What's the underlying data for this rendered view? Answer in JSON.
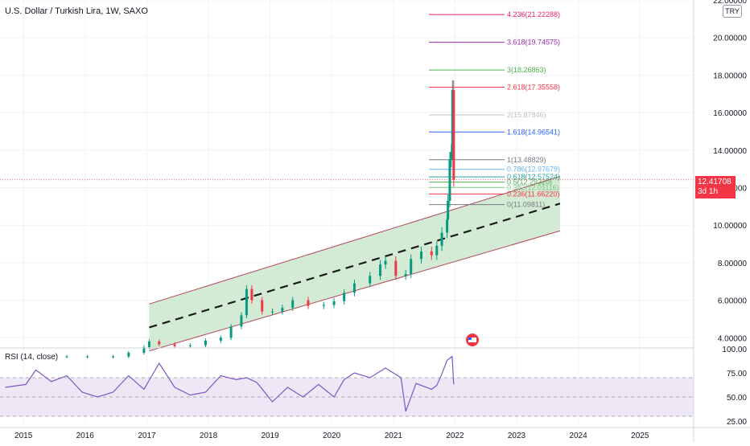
{
  "header": {
    "title": "U.S. Dollar / Turkish Lira, 1W, SAXO",
    "currency_badge": "TRY",
    "last_price": "12.41708",
    "countdown": "3d 1h"
  },
  "rsi_panel": {
    "title": "RSI (14, close)"
  },
  "colors": {
    "candle_up": "#089981",
    "candle_down": "#f23645",
    "channel_fill": "#c8e6c9",
    "channel_border": "#b2475a",
    "midline": "#1a1a1a",
    "rsi_line": "#7e57c2",
    "rsi_band": "#ede7f6"
  },
  "chart_data": [
    {
      "type": "candlestick",
      "series": [
        {
          "name": "",
          "x": [
            "2015-09",
            "2016-01",
            "2016-06",
            "2016-09",
            "2016-12",
            "2017-01",
            "2017-03",
            "2017-06",
            "2017-09",
            "2017-12",
            "2018-03",
            "2018-05",
            "2018-07",
            "2018-08",
            "2018-09",
            "2018-11",
            "2019-01",
            "2019-03",
            "2019-05",
            "2019-08",
            "2019-11",
            "2020-01",
            "2020-03",
            "2020-05",
            "2020-08",
            "2020-10",
            "2020-11",
            "2021-01",
            "2021-03",
            "2021-04",
            "2021-06",
            "2021-08",
            "2021-09",
            "2021-10",
            "2021-11",
            "2021-11-20",
            "2021-12-01",
            "2021-12-10",
            "2021-12-17",
            "2021-12-24"
          ],
          "values": [
            3.0,
            3.0,
            3.0,
            3.2,
            3.5,
            3.8,
            3.65,
            3.55,
            3.6,
            3.85,
            4.0,
            4.6,
            5.2,
            6.6,
            6.0,
            5.4,
            5.4,
            5.6,
            6.0,
            5.7,
            5.75,
            5.95,
            6.4,
            6.9,
            7.3,
            7.9,
            8.1,
            7.3,
            7.4,
            8.2,
            8.6,
            8.4,
            8.9,
            9.6,
            10.3,
            11.3,
            13.5,
            13.9,
            17.2,
            12.42
          ]
        }
      ],
      "ylim": [
        3.5,
        22
      ],
      "y_ticks": [
        "4.00000",
        "6.00000",
        "8.00000",
        "10.00000",
        "12.00000",
        "14.00000",
        "16.00000",
        "18.00000",
        "20.00000",
        "22.00000"
      ],
      "x_ticks": [
        "2015",
        "2016",
        "2017",
        "2018",
        "2019",
        "2020",
        "2021",
        "2022",
        "2023",
        "2024",
        "2025"
      ],
      "channel": {
        "lower_start": [
          "2017-01",
          3.3
        ],
        "lower_end": [
          "2023-09",
          9.7
        ],
        "upper_start": [
          "2017-01",
          5.8
        ],
        "upper_end": [
          "2023-09",
          12.6
        ]
      },
      "fibonacci_levels": [
        {
          "label": "4.236(21.22288)",
          "value": 21.22288,
          "color": "#e91e63"
        },
        {
          "label": "3.618(19.74575)",
          "value": 19.74575,
          "color": "#9c27b0"
        },
        {
          "label": "3(18.26863)",
          "value": 18.26863,
          "color": "#4caf50"
        },
        {
          "label": "2.618(17.35558)",
          "value": 17.35558,
          "color": "#f23645"
        },
        {
          "label": "2(15.87846)",
          "value": 15.87846,
          "color": "#c0c0c0"
        },
        {
          "label": "1.618(14.96541)",
          "value": 14.96541,
          "color": "#2962ff"
        },
        {
          "label": "1(13.48829)",
          "value": 13.48829,
          "color": "#787b86"
        },
        {
          "label": "0.786(12.97679)",
          "value": 12.97679,
          "color": "#64b5f6"
        },
        {
          "label": "0.618(12.57524)",
          "value": 12.57524,
          "color": "#26a69a"
        },
        {
          "label": "0.5(12.29320)",
          "value": 12.2932,
          "color": "#4caf50"
        },
        {
          "label": "0.382(12.01116)",
          "value": 12.01116,
          "color": "#81c784"
        },
        {
          "label": "0.236(11.66220)",
          "value": 11.6622,
          "color": "#f23645"
        },
        {
          "label": "0(11.09811)",
          "value": 11.09811,
          "color": "#787b86"
        }
      ]
    },
    {
      "type": "line",
      "series": [
        {
          "name": "",
          "x": [
            "2014-09",
            "2015-01",
            "2015-03",
            "2015-06",
            "2015-09",
            "2015-12",
            "2016-03",
            "2016-06",
            "2016-09",
            "2016-12",
            "2017-03",
            "2017-06",
            "2017-09",
            "2017-12",
            "2018-03",
            "2018-06",
            "2018-08",
            "2018-10",
            "2019-01",
            "2019-04",
            "2019-07",
            "2019-10",
            "2020-01",
            "2020-03",
            "2020-05",
            "2020-08",
            "2020-11",
            "2021-02",
            "2021-03",
            "2021-05",
            "2021-08",
            "2021-09",
            "2021-10",
            "2021-11",
            "2021-12",
            "2021-12-24"
          ],
          "values": [
            60,
            63,
            78,
            66,
            72,
            55,
            50,
            55,
            72,
            58,
            85,
            60,
            52,
            55,
            72,
            68,
            70,
            65,
            45,
            60,
            50,
            63,
            50,
            68,
            75,
            70,
            80,
            70,
            35,
            64,
            58,
            62,
            74,
            88,
            92,
            63
          ]
        }
      ],
      "ylim": [
        20,
        100
      ],
      "y_ticks": [
        "25.00",
        "50.00",
        "75.00",
        "100.00"
      ],
      "bands": [
        30,
        70
      ]
    }
  ]
}
